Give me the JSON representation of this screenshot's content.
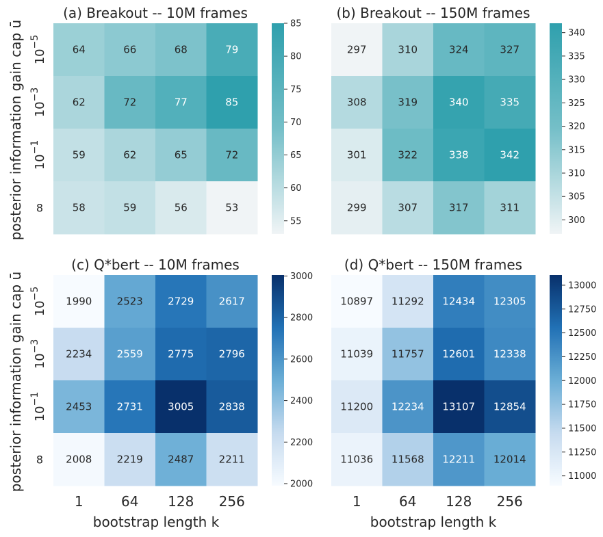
{
  "figure": {
    "ylabel": "posterior information gain cap ū",
    "xlabel": "bootstrap length k"
  },
  "chart_data": [
    {
      "type": "heatmap",
      "title": "(a) Breakout -- 10M frames",
      "colormap": "teal",
      "color_range": [
        53,
        85
      ],
      "colorbar_ticks": [
        "55",
        "60",
        "65",
        "70",
        "75",
        "80",
        "85"
      ],
      "x_categories": [
        "1",
        "64",
        "128",
        "256"
      ],
      "y_categories": [
        "10^-5",
        "10^-3",
        "10^-1",
        "8"
      ],
      "values": [
        [
          64,
          66,
          68,
          79
        ],
        [
          62,
          72,
          77,
          85
        ],
        [
          59,
          62,
          65,
          72
        ],
        [
          58,
          59,
          56,
          53
        ]
      ]
    },
    {
      "type": "heatmap",
      "title": "(b) Breakout -- 150M frames",
      "colormap": "teal",
      "color_range": [
        297,
        342
      ],
      "colorbar_ticks": [
        "300",
        "305",
        "310",
        "315",
        "320",
        "325",
        "330",
        "335",
        "340"
      ],
      "x_categories": [
        "1",
        "64",
        "128",
        "256"
      ],
      "y_categories": [
        "10^-5",
        "10^-3",
        "10^-1",
        "8"
      ],
      "values": [
        [
          297,
          310,
          324,
          327
        ],
        [
          308,
          319,
          340,
          335
        ],
        [
          301,
          322,
          338,
          342
        ],
        [
          299,
          307,
          317,
          311
        ]
      ]
    },
    {
      "type": "heatmap",
      "title": "(c) Q*bert -- 10M frames",
      "colormap": "blues",
      "color_range": [
        1990,
        3005
      ],
      "colorbar_ticks": [
        "2000",
        "2200",
        "2400",
        "2600",
        "2800",
        "3000"
      ],
      "x_categories": [
        "1",
        "64",
        "128",
        "256"
      ],
      "y_categories": [
        "10^-5",
        "10^-3",
        "10^-1",
        "8"
      ],
      "values": [
        [
          1990,
          2523,
          2729,
          2617
        ],
        [
          2234,
          2559,
          2775,
          2796
        ],
        [
          2453,
          2731,
          3005,
          2838
        ],
        [
          2008,
          2219,
          2487,
          2211
        ]
      ]
    },
    {
      "type": "heatmap",
      "title": "(d) Q*bert -- 150M frames",
      "colormap": "blues",
      "color_range": [
        10897,
        13107
      ],
      "colorbar_ticks": [
        "11000",
        "11250",
        "11500",
        "11750",
        "12000",
        "12250",
        "12500",
        "12750",
        "13000"
      ],
      "x_categories": [
        "1",
        "64",
        "128",
        "256"
      ],
      "y_categories": [
        "10^-5",
        "10^-3",
        "10^-1",
        "8"
      ],
      "values": [
        [
          10897,
          11292,
          12434,
          12305
        ],
        [
          11039,
          11757,
          12601,
          12338
        ],
        [
          11200,
          12234,
          13107,
          12854
        ],
        [
          11036,
          11568,
          12211,
          12014
        ]
      ]
    }
  ]
}
